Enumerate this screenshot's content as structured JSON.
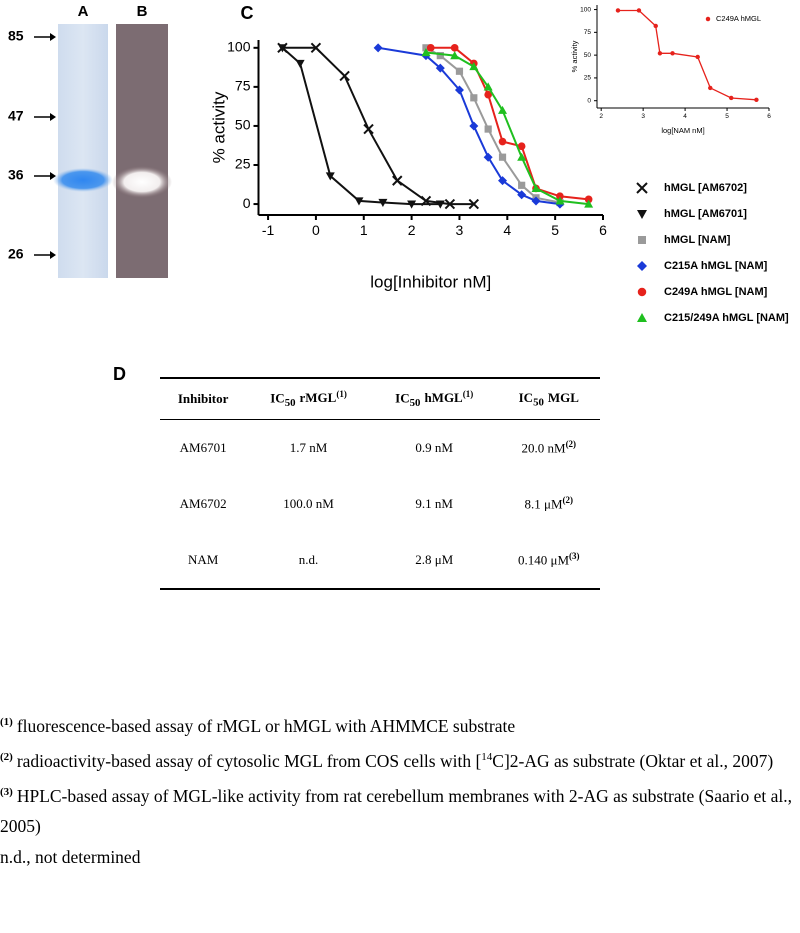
{
  "gel": {
    "lanes": [
      "A",
      "B"
    ],
    "markers": [
      "85",
      "47",
      "36",
      "26"
    ]
  },
  "chart_data": [
    {
      "type": "line",
      "panel": "C",
      "y_label": "% activity",
      "x_label": "log[Inhibitor nM]",
      "xlim": [
        -1.2,
        6
      ],
      "xticks": [
        -1,
        0,
        1,
        2,
        3,
        4,
        5,
        6
      ],
      "ylim": [
        -7,
        105
      ],
      "yticks": [
        0,
        25,
        50,
        75,
        100
      ],
      "series": [
        {
          "name": "hMGL [AM6702]",
          "color": "#111111",
          "marker": "x",
          "x": [
            -0.7,
            0.0,
            0.6,
            1.1,
            1.7,
            2.3,
            2.8,
            3.3
          ],
          "values": [
            100,
            100,
            82,
            48,
            15,
            2,
            0,
            0
          ]
        },
        {
          "name": "hMGL [AM6701]",
          "color": "#111111",
          "marker": "triangle-down",
          "x": [
            -0.7,
            -0.33,
            0.3,
            0.9,
            1.4,
            2.0,
            2.6
          ],
          "values": [
            100,
            90,
            18,
            2,
            1,
            0,
            0
          ]
        },
        {
          "name": "hMGL [NAM]",
          "color": "#9a9a9a",
          "marker": "square",
          "x": [
            2.3,
            2.6,
            3.0,
            3.3,
            3.6,
            3.9,
            4.3,
            4.6,
            5.1
          ],
          "values": [
            100,
            95,
            85,
            68,
            48,
            30,
            12,
            4,
            1
          ]
        },
        {
          "name": "C215A hMGL [NAM]",
          "color": "#1a3ad8",
          "marker": "diamond",
          "x": [
            1.3,
            2.3,
            2.6,
            3.0,
            3.3,
            3.6,
            3.9,
            4.3,
            4.6,
            5.1
          ],
          "values": [
            100,
            95,
            87,
            73,
            50,
            30,
            15,
            6,
            2,
            0
          ]
        },
        {
          "name": "C249A hMGL [NAM]",
          "color": "#e6221c",
          "marker": "circle",
          "x": [
            2.4,
            2.9,
            3.3,
            3.6,
            3.9,
            4.3,
            4.6,
            5.1,
            5.7
          ],
          "values": [
            100,
            100,
            90,
            70,
            40,
            37,
            10,
            5,
            3
          ]
        },
        {
          "name": "C215/249A hMGL [NAM]",
          "color": "#1fbf1f",
          "marker": "triangle",
          "x": [
            2.3,
            2.9,
            3.3,
            3.6,
            3.9,
            4.3,
            4.6,
            5.1,
            5.7
          ],
          "values": [
            97,
            95,
            88,
            75,
            60,
            30,
            10,
            2,
            0
          ]
        }
      ]
    },
    {
      "type": "line",
      "y_label": "% activity",
      "x_label": "log[NAM nM]",
      "xlim": [
        1.9,
        6
      ],
      "xticks": [
        2,
        3,
        4,
        5,
        6
      ],
      "ylim": [
        -8,
        105
      ],
      "yticks": [
        0,
        25,
        50,
        75,
        100
      ],
      "series": [
        {
          "name": "C249A hMGL",
          "color": "#e6221c",
          "marker": "circle",
          "x": [
            2.4,
            2.9,
            3.3,
            3.4,
            3.7,
            4.3,
            4.6,
            5.1,
            5.7
          ],
          "values": [
            99,
            99,
            82,
            52,
            52,
            48,
            14,
            3,
            1
          ]
        }
      ]
    }
  ],
  "table": {
    "panel": "D",
    "header": [
      "Inhibitor",
      {
        "text": "IC",
        "sub": "50",
        "rest": "rMGL",
        "sup": "(1)"
      },
      {
        "text": "IC",
        "sub": "50",
        "rest": "hMGL",
        "sup": "(1)"
      },
      {
        "text": "IC",
        "sub": "50",
        "rest": "MGL"
      }
    ],
    "rows": [
      [
        "AM6701",
        "1.7 nM",
        "0.9 nM",
        {
          "text": "20.0 nM",
          "sup": "(2)"
        }
      ],
      [
        "AM6702",
        "100.0 nM",
        "9.1 nM",
        {
          "text": "8.1 μM",
          "sup": "(2)"
        }
      ],
      [
        "NAM",
        "n.d.",
        "2.8 μM",
        {
          "text": "0.140 μM",
          "sup": "(3)"
        }
      ]
    ]
  },
  "footnotes": [
    {
      "mark": "(1)",
      "parts": [
        {
          "text": "fluorescence-based assay of rMGL or hMGL with AHMMCE substrate"
        }
      ]
    },
    {
      "mark": "(2)",
      "parts": [
        {
          "text": "radioactivity-based assay of cytosolic MGL from COS cells with ["
        },
        {
          "sup": "14"
        },
        {
          "text": "C]2-AG as substrate (Oktar et al., 2007)"
        }
      ]
    },
    {
      "mark": "(3)",
      "parts": [
        {
          "text": "HPLC-based assay of MGL-like activity from rat cerebellum membranes with 2-AG as substrate (Saario et al., 2005)"
        }
      ]
    },
    {
      "parts": [
        {
          "text": "n.d., not determined"
        }
      ]
    }
  ]
}
